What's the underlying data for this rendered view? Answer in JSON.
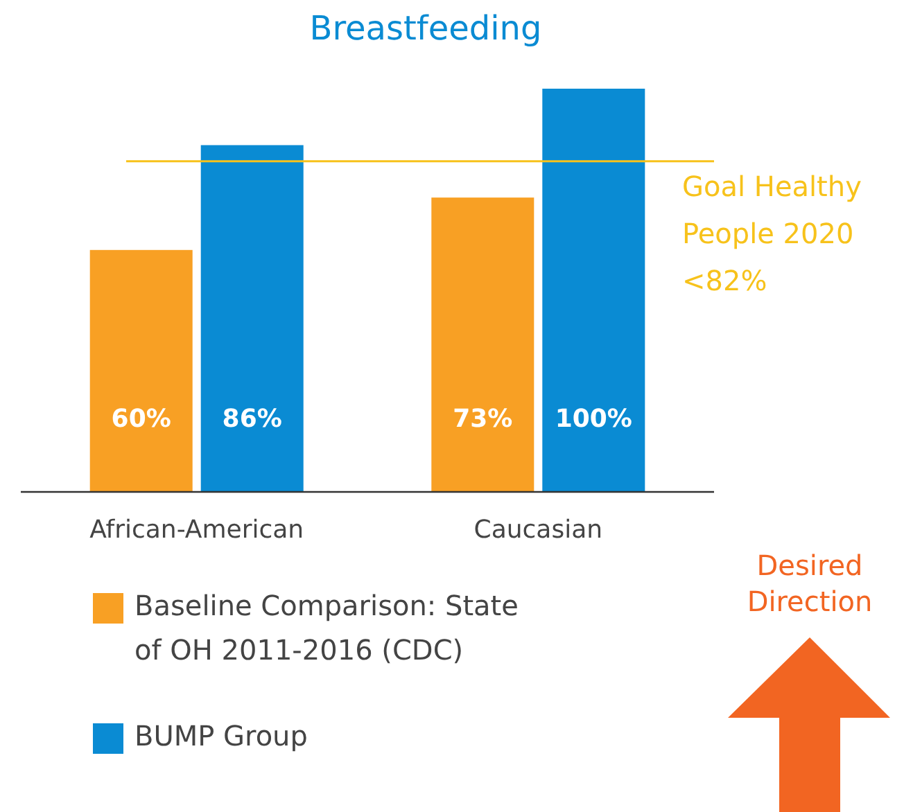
{
  "chart_data": {
    "type": "bar",
    "title": "Breastfeeding",
    "categories": [
      "African-American",
      "Caucasian"
    ],
    "series": [
      {
        "name": "Baseline Comparison: State of OH 2011-2016 (CDC)",
        "color": "#f8a024",
        "values": [
          60,
          73
        ],
        "value_labels": [
          "60%",
          "73%"
        ]
      },
      {
        "name": "BUMP Group",
        "color": "#0a8bd3",
        "values": [
          86,
          100
        ],
        "value_labels": [
          "86%",
          "100%"
        ]
      }
    ],
    "ylim": [
      0,
      100
    ],
    "tick_labels": "x",
    "legend": "bottom left",
    "ref_lines": [
      {
        "axis": "y",
        "value": 82,
        "label": "Goal Healthy People 2020 <82%",
        "color": "#f7c21b"
      }
    ],
    "annotations": [
      "Desired Direction"
    ]
  }
}
